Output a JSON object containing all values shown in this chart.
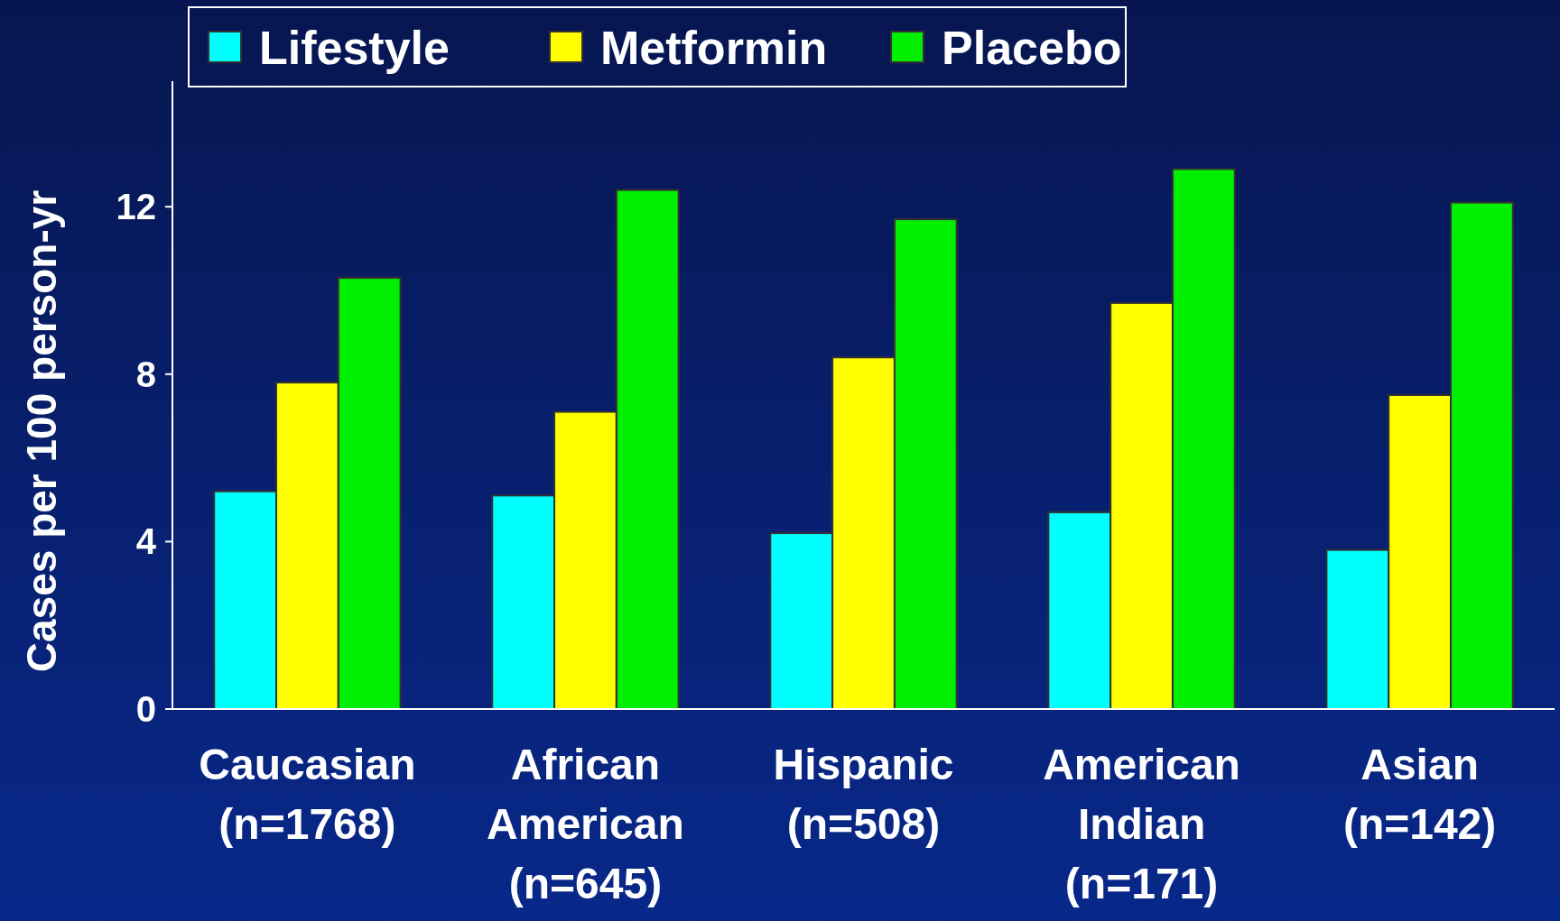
{
  "chart_data": {
    "type": "bar",
    "ylabel": "Cases per 100 person-yr",
    "categories": [
      "Caucasian\n(n=1768)",
      "African\nAmerican\n(n=645)",
      "Hispanic\n(n=508)",
      "American\nIndian\n(n=171)",
      "Asian\n(n=142)"
    ],
    "series": [
      {
        "name": "Lifestyle",
        "color": "#00ffff",
        "values": [
          5.2,
          5.1,
          4.2,
          4.7,
          3.8
        ]
      },
      {
        "name": "Metformin",
        "color": "#ffff00",
        "values": [
          7.8,
          7.1,
          8.4,
          9.7,
          7.5
        ]
      },
      {
        "name": "Placebo",
        "color": "#00ee00",
        "values": [
          10.3,
          12.4,
          11.7,
          12.9,
          12.1
        ]
      }
    ],
    "ylim": [
      0,
      15
    ],
    "yticks": [
      0,
      4,
      8,
      12
    ],
    "grid": false,
    "legend": "top"
  }
}
